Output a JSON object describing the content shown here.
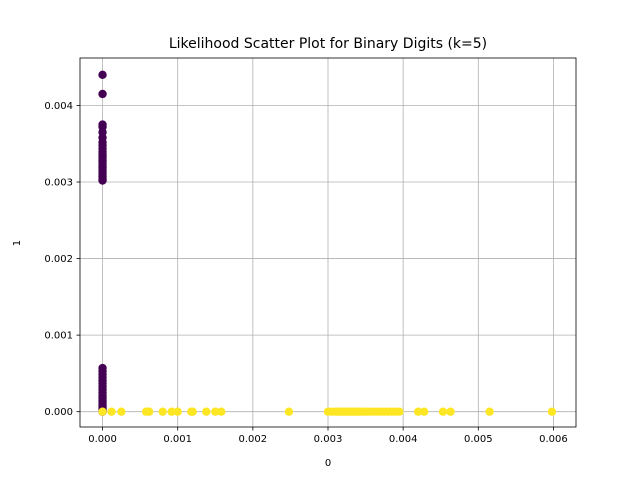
{
  "chart_data": {
    "type": "scatter",
    "title": "Likelihood Scatter Plot for Binary Digits (k=5)",
    "xlabel": "0",
    "ylabel": "1",
    "xlim": [
      -0.0003,
      0.0063
    ],
    "ylim": [
      -0.0002,
      0.00462
    ],
    "grid": true,
    "legend": "none",
    "xticks": [
      0.0,
      0.001,
      0.002,
      0.003,
      0.004,
      0.005,
      0.006
    ],
    "xtick_labels": [
      "0.000",
      "0.001",
      "0.002",
      "0.003",
      "0.004",
      "0.005",
      "0.006"
    ],
    "yticks": [
      0.0,
      0.001,
      0.002,
      0.003,
      0.004
    ],
    "ytick_labels": [
      "0.000",
      "0.001",
      "0.002",
      "0.003",
      "0.004"
    ],
    "series": [
      {
        "color": "#440154",
        "x": [
          0,
          0,
          0,
          0,
          0,
          0,
          0,
          0,
          0,
          0,
          0,
          0,
          0,
          0,
          0,
          0,
          0,
          0,
          0,
          0,
          0,
          0,
          0,
          0,
          0,
          0,
          0,
          0,
          0,
          0,
          0,
          0,
          0,
          0,
          0,
          0,
          0,
          0,
          0,
          0,
          0,
          0
        ],
        "y": [
          0.0044,
          0.00415,
          0.00375,
          0.00372,
          0.00365,
          0.00358,
          0.00352,
          0.00348,
          0.00344,
          0.0034,
          0.00337,
          0.00334,
          0.00331,
          0.00328,
          0.00325,
          0.00322,
          0.00319,
          0.00316,
          0.00313,
          0.0031,
          0.00307,
          0.00304,
          0.00302,
          0.00057,
          0.00053,
          0.00049,
          0.00045,
          0.00041,
          0.00037,
          0.00033,
          0.00029,
          0.00025,
          0.00021,
          0.00018,
          0.00015,
          0.00012,
          9e-05,
          7e-05,
          5e-05,
          3e-05,
          1e-05,
          0.0
        ]
      },
      {
        "color": "#fde725",
        "x": [
          0.0,
          0.00012,
          0.00025,
          0.00058,
          0.00062,
          0.0008,
          0.00092,
          0.001,
          0.00118,
          0.0012,
          0.00138,
          0.0015,
          0.00158,
          0.00248,
          0.003,
          0.00305,
          0.0031,
          0.00313,
          0.00316,
          0.00319,
          0.00322,
          0.00325,
          0.00328,
          0.00331,
          0.00334,
          0.00337,
          0.0034,
          0.00343,
          0.00347,
          0.00351,
          0.00355,
          0.0036,
          0.00365,
          0.0037,
          0.00375,
          0.0038,
          0.00385,
          0.0039,
          0.00395,
          0.0042,
          0.00428,
          0.00453,
          0.00463,
          0.00515,
          0.00598
        ],
        "y": [
          0,
          0,
          0,
          0,
          0,
          0,
          0,
          0,
          0,
          0,
          0,
          0,
          0,
          0,
          0,
          0,
          0,
          0,
          0,
          0,
          0,
          0,
          0,
          0,
          0,
          0,
          0,
          0,
          0,
          0,
          0,
          0,
          0,
          0,
          0,
          0,
          0,
          0,
          0,
          0,
          0,
          0,
          0,
          0,
          0
        ]
      }
    ]
  }
}
